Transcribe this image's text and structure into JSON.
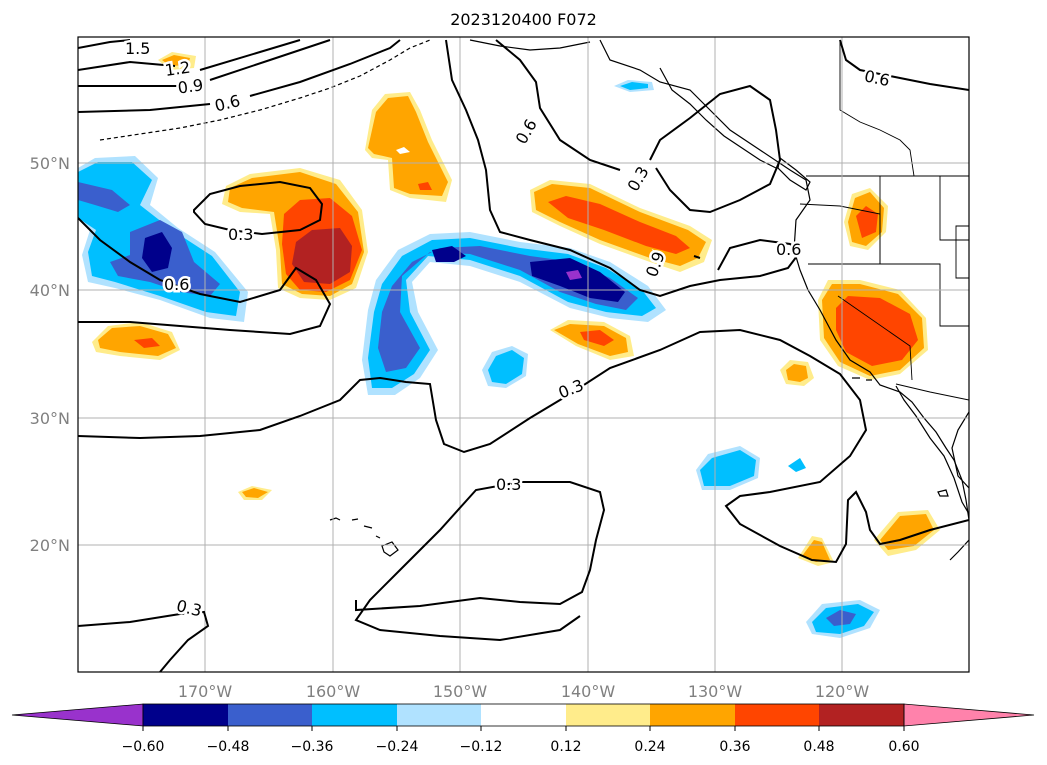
{
  "title": "2023120400 F072",
  "axes": {
    "lat_labels": [
      "50°N",
      "40°N",
      "30°N",
      "20°N"
    ],
    "lon_labels": [
      "170°W",
      "160°W",
      "150°W",
      "140°W",
      "130°W",
      "120°W"
    ]
  },
  "colorbar": {
    "ticks": [
      "−0.60",
      "−0.48",
      "−0.36",
      "−0.24",
      "−0.12",
      "0.12",
      "0.24",
      "0.36",
      "0.48",
      "0.60"
    ],
    "colors": [
      "#9932cc",
      "#00008b",
      "#3a5fcd",
      "#00bfff",
      "#b0e2ff",
      "#ffffff",
      "#ffec8b",
      "#ffa500",
      "#ff4500",
      "#b22222",
      "#ff82ab"
    ]
  },
  "contours": {
    "labels": [
      "1.5",
      "1.2",
      "0.9",
      "0.6",
      "0.3",
      "0.6",
      "0.3",
      "0.6",
      "0.6",
      "0.9",
      "0.3",
      "0.6",
      "0.3",
      "0.3"
    ],
    "color": "#000000"
  }
}
